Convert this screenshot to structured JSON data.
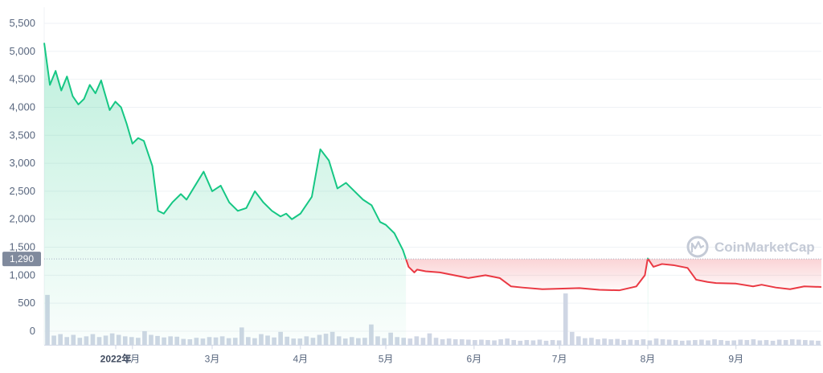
{
  "chart_data": {
    "type": "area",
    "watermark": "CoinMarketCap",
    "y_ticks": [
      "5,500",
      "5,000",
      "4,500",
      "4,000",
      "3,500",
      "3,000",
      "2,500",
      "2,000",
      "1,500",
      "1,000",
      "500",
      "0"
    ],
    "x_ticks": [
      "2022年",
      "2月",
      "3月",
      "4月",
      "5月",
      "6月",
      "7月",
      "8月",
      "9月"
    ],
    "ylim": [
      -250,
      5750
    ],
    "reference_line": {
      "value": 1290,
      "label": "1,290"
    },
    "colors": {
      "up": "#16c784",
      "down": "#ea3943",
      "volume": "#cfd6e4",
      "grid": "#eff2f5"
    },
    "series": [
      {
        "x": [
          "2022-01-01",
          "2022-01-03",
          "2022-01-05",
          "2022-01-07",
          "2022-01-09",
          "2022-01-11",
          "2022-01-13",
          "2022-01-15",
          "2022-01-17",
          "2022-01-19",
          "2022-01-21",
          "2022-01-22",
          "2022-01-24",
          "2022-01-26",
          "2022-01-28",
          "2022-01-30",
          "2022-02-01",
          "2022-02-03",
          "2022-02-05",
          "2022-02-08",
          "2022-02-10",
          "2022-02-12",
          "2022-02-15",
          "2022-02-18",
          "2022-02-20",
          "2022-02-23",
          "2022-02-26",
          "2022-03-01",
          "2022-03-04",
          "2022-03-07",
          "2022-03-10",
          "2022-03-13",
          "2022-03-16",
          "2022-03-19",
          "2022-03-22",
          "2022-03-25",
          "2022-03-27",
          "2022-03-29",
          "2022-04-01",
          "2022-04-03",
          "2022-04-05",
          "2022-04-08",
          "2022-04-11",
          "2022-04-14",
          "2022-04-17",
          "2022-04-20",
          "2022-04-23",
          "2022-04-26",
          "2022-04-29",
          "2022-05-01",
          "2022-05-04",
          "2022-05-07",
          "2022-05-09",
          "2022-05-11",
          "2022-05-12",
          "2022-05-15",
          "2022-05-20",
          "2022-05-25",
          "2022-05-30",
          "2022-06-05",
          "2022-06-10",
          "2022-06-14",
          "2022-06-18",
          "2022-06-25",
          "2022-07-01",
          "2022-07-08",
          "2022-07-15",
          "2022-07-22",
          "2022-07-28",
          "2022-07-31",
          "2022-08-01",
          "2022-08-03",
          "2022-08-06",
          "2022-08-10",
          "2022-08-15",
          "2022-08-18",
          "2022-08-22",
          "2022-08-25",
          "2022-09-01",
          "2022-09-07",
          "2022-09-10",
          "2022-09-15",
          "2022-09-20",
          "2022-09-25",
          "2022-10-01"
        ],
        "values": [
          5150,
          4400,
          4650,
          4300,
          4550,
          4200,
          4050,
          4150,
          4400,
          4250,
          4480,
          4300,
          3950,
          4100,
          4000,
          3700,
          3350,
          3450,
          3400,
          2950,
          2150,
          2100,
          2300,
          2450,
          2350,
          2600,
          2850,
          2500,
          2600,
          2300,
          2150,
          2200,
          2500,
          2300,
          2150,
          2050,
          2100,
          2000,
          2100,
          2250,
          2400,
          3250,
          3050,
          2550,
          2650,
          2500,
          2350,
          2250,
          1950,
          1900,
          1750,
          1450,
          1150,
          1050,
          1100,
          1070,
          1050,
          1000,
          950,
          1000,
          950,
          800,
          780,
          750,
          760,
          770,
          740,
          730,
          800,
          1000,
          1300,
          1150,
          1200,
          1180,
          1130,
          920,
          880,
          860,
          850,
          800,
          830,
          780,
          750,
          800,
          790
        ]
      }
    ],
    "volume": [
      680,
      130,
      150,
      110,
      140,
      100,
      120,
      150,
      110,
      130,
      160,
      140,
      120,
      110,
      100,
      190,
      140,
      125,
      105,
      120,
      115,
      85,
      80,
      100,
      90,
      110,
      105,
      120,
      95,
      100,
      240,
      110,
      95,
      150,
      130,
      105,
      180,
      115,
      90,
      90,
      120,
      100,
      140,
      155,
      180,
      120,
      90,
      110,
      95,
      100,
      280,
      120,
      95,
      170,
      110,
      100,
      90,
      120,
      100,
      160,
      100,
      80,
      90,
      80,
      80,
      75,
      70,
      75,
      70,
      65,
      80,
      90,
      70,
      60,
      70,
      65,
      75,
      60,
      70,
      65,
      700,
      180,
      120,
      95,
      100,
      80,
      90,
      80,
      85,
      70,
      75,
      70,
      80,
      65,
      90,
      80,
      75,
      70,
      60,
      65,
      70,
      75,
      65,
      80,
      70,
      60,
      65,
      75,
      70,
      80,
      65,
      70,
      60,
      75,
      70,
      80,
      75,
      70,
      65,
      60
    ]
  }
}
